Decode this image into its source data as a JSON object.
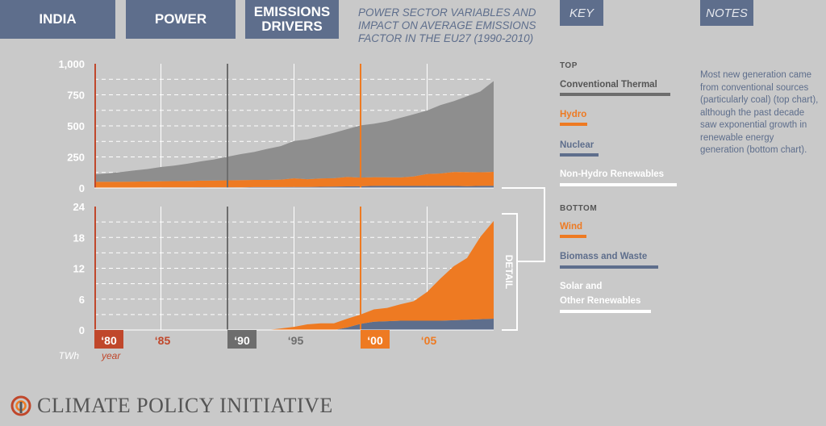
{
  "header": {
    "tabs": [
      {
        "label": "INDIA"
      },
      {
        "label": "POWER"
      },
      {
        "label_line1": "EMISSIONS",
        "label_line2": "DRIVERS"
      }
    ],
    "subtitle_lines": [
      "POWER SECTOR VARIABLES AND",
      "IMPACT ON AVERAGE EMISSIONS",
      "FACTOR IN THE EU27 (1990-2010)"
    ],
    "key_label": "KEY",
    "notes_label": "NOTES"
  },
  "key": {
    "top_heading": "TOP",
    "top_items": [
      {
        "label": "Conventional Thermal",
        "color": "#6d6d6d"
      },
      {
        "label": "Hydro",
        "color": "#ee7a22"
      },
      {
        "label": "Nuclear",
        "color": "#5e6e8c"
      },
      {
        "label": "Non-Hydro Renewables",
        "color": "#ffffff"
      }
    ],
    "bottom_heading": "BOTTOM",
    "bottom_items": [
      {
        "label": "Wind",
        "color": "#ee7a22"
      },
      {
        "label": "Biomass and Waste",
        "color": "#5e6e8c"
      },
      {
        "label_line1": "Solar and",
        "label_line2": "Other Renewables",
        "color": "#ffffff"
      }
    ]
  },
  "notes": {
    "text": "Most new generation came from conventional sources (particularly coal) (top chart), although the past decade saw exponential growth in renewable energy generation (bottom chart)."
  },
  "detail_label": "DETAIL",
  "footer": {
    "logo_text": "CLIMATE POLICY INITIATIVE"
  },
  "colors": {
    "grey": "#8e8e8e",
    "orange": "#ee7a22",
    "navy": "#5e6e8c",
    "red": "#c0472b",
    "label_bg_grey": "#6d6d6d",
    "label_bg_orange": "#ee7a22"
  },
  "chart_data": [
    {
      "type": "area",
      "stacked": true,
      "title": "Top",
      "unit_label": "TWh",
      "x": [
        1980,
        1981,
        1982,
        1983,
        1984,
        1985,
        1986,
        1987,
        1988,
        1989,
        1990,
        1991,
        1992,
        1993,
        1994,
        1995,
        1996,
        1997,
        1998,
        1999,
        2000,
        2001,
        2002,
        2003,
        2004,
        2005,
        2006,
        2007,
        2008,
        2009,
        2010
      ],
      "ylim": [
        0,
        1000
      ],
      "yticks": [
        "0",
        "250",
        "500",
        "750",
        "1,000"
      ],
      "series": [
        {
          "name": "Nuclear",
          "color": "#5e6e8c",
          "values": [
            3,
            3,
            3,
            3,
            4,
            5,
            5,
            5,
            6,
            5,
            6,
            5,
            7,
            7,
            7,
            8,
            8,
            10,
            11,
            13,
            14,
            17,
            18,
            17,
            17,
            17,
            17,
            17,
            15,
            17,
            18
          ]
        },
        {
          "name": "Hydro",
          "color": "#ee7a22",
          "values": [
            47,
            47,
            47,
            48,
            49,
            49,
            50,
            51,
            53,
            55,
            56,
            58,
            58,
            58,
            60,
            70,
            63,
            67,
            68,
            76,
            70,
            70,
            68,
            68,
            76,
            96,
            100,
            112,
            113,
            110,
            112
          ]
        },
        {
          "name": "Conventional Thermal",
          "color": "#8e8e8e",
          "values": [
            60,
            68,
            78,
            90,
            100,
            115,
            125,
            140,
            155,
            170,
            190,
            210,
            225,
            250,
            270,
            300,
            320,
            340,
            365,
            385,
            420,
            430,
            450,
            480,
            500,
            510,
            550,
            570,
            610,
            650,
            730
          ]
        }
      ]
    },
    {
      "type": "area",
      "stacked": true,
      "title": "Bottom",
      "unit_label": "TWh",
      "xlabel": "year",
      "x": [
        1980,
        1981,
        1982,
        1983,
        1984,
        1985,
        1986,
        1987,
        1988,
        1989,
        1990,
        1991,
        1992,
        1993,
        1994,
        1995,
        1996,
        1997,
        1998,
        1999,
        2000,
        2001,
        2002,
        2003,
        2004,
        2005,
        2006,
        2007,
        2008,
        2009,
        2010
      ],
      "xtick_labels": [
        {
          "year": 1980,
          "label": "‘80"
        },
        {
          "year": 1985,
          "label": "‘85"
        },
        {
          "year": 1990,
          "label": "‘90"
        },
        {
          "year": 1995,
          "label": "‘95"
        },
        {
          "year": 2000,
          "label": "‘00"
        },
        {
          "year": 2005,
          "label": "‘05"
        }
      ],
      "ylim": [
        0,
        24
      ],
      "yticks": [
        "0",
        "6",
        "12",
        "18",
        "24"
      ],
      "series": [
        {
          "name": "Solar and Other Renewables",
          "color": "#ffffff",
          "values": [
            0,
            0,
            0,
            0,
            0,
            0,
            0,
            0,
            0,
            0,
            0,
            0,
            0,
            0,
            0,
            0,
            0,
            0,
            0,
            0,
            0,
            0,
            0,
            0,
            0,
            0,
            0,
            0,
            0,
            0,
            0
          ]
        },
        {
          "name": "Biomass and Waste",
          "color": "#5e6e8c",
          "values": [
            0,
            0,
            0,
            0,
            0,
            0,
            0,
            0,
            0,
            0,
            0,
            0,
            0,
            0,
            0,
            0,
            0,
            0,
            0,
            0.5,
            1.2,
            1.6,
            1.7,
            1.8,
            1.8,
            1.8,
            1.8,
            1.9,
            2.0,
            2.1,
            2.2
          ]
        },
        {
          "name": "Wind",
          "color": "#ee7a22",
          "values": [
            0,
            0,
            0,
            0,
            0,
            0,
            0,
            0,
            0,
            0,
            0,
            0,
            0,
            0,
            0.3,
            0.6,
            1.1,
            1.3,
            1.3,
            1.7,
            1.8,
            2.4,
            2.6,
            3.2,
            3.8,
            5.6,
            8.2,
            10.5,
            12.0,
            16.0,
            19.0
          ]
        }
      ]
    }
  ]
}
